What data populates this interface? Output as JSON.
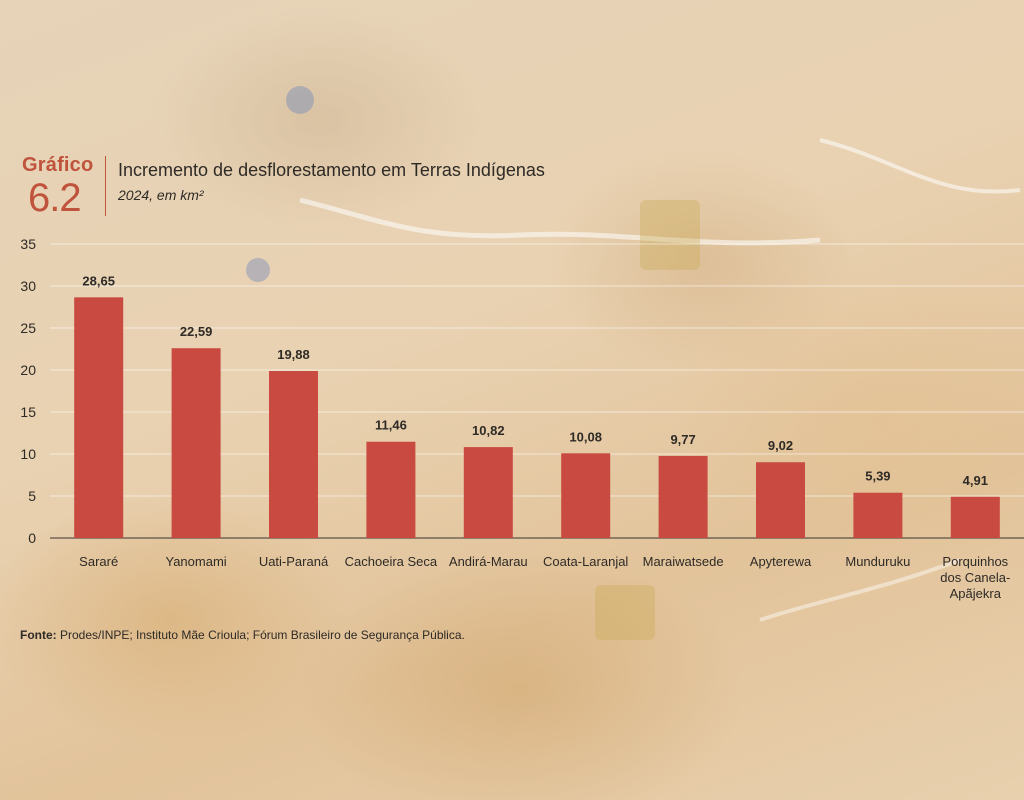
{
  "header": {
    "label": "Gráfico",
    "number": "6.2",
    "title": "Incremento de desflorestamento em Terras Indígenas",
    "subtitle": "2024, em km²"
  },
  "source": {
    "prefix": "Fonte:",
    "text": "Prodes/INPE; Instituto Mãe Crioula; Fórum Brasileiro de Segurança Pública."
  },
  "colors": {
    "bar": "#c84a40",
    "accent": "#c0533b",
    "text": "#2e2a26"
  },
  "chart_data": {
    "type": "bar",
    "title": "Incremento de desflorestamento em Terras Indígenas",
    "subtitle": "2024, em km²",
    "categories": [
      [
        "Sararé"
      ],
      [
        "Yanomami"
      ],
      [
        "Uati-Paraná"
      ],
      [
        "Cachoeira Seca"
      ],
      [
        "Andirá-Marau"
      ],
      [
        "Coata-Laranjal"
      ],
      [
        "Maraiwatsede"
      ],
      [
        "Apyterewa"
      ],
      [
        "Munduruku"
      ],
      [
        "Porquinhos",
        "dos Canela-",
        "Apãjekra"
      ]
    ],
    "values": [
      28.65,
      22.59,
      19.88,
      11.46,
      10.82,
      10.08,
      9.77,
      9.02,
      5.39,
      4.91
    ],
    "value_labels": [
      "28,65",
      "22,59",
      "19,88",
      "11,46",
      "10,82",
      "10,08",
      "9,77",
      "9,02",
      "5,39",
      "4,91"
    ],
    "y_ticks": [
      0,
      5,
      10,
      15,
      20,
      25,
      30,
      35
    ],
    "ylim": [
      0,
      35
    ],
    "grid": true,
    "legend": false
  }
}
